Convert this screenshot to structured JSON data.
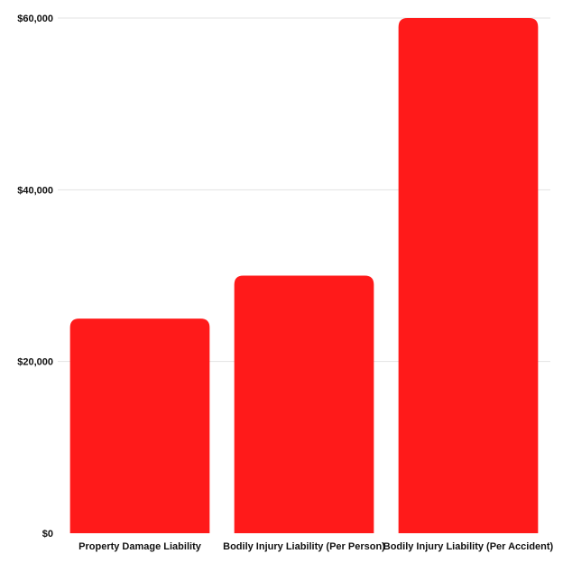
{
  "chart_data": {
    "type": "bar",
    "categories": [
      "Property Damage Liability",
      "Bodily Injury Liability (Per Person)",
      "Bodily Injury Liability (Per Accident)"
    ],
    "values": [
      25000,
      30000,
      60000
    ],
    "ylim": [
      0,
      60000
    ],
    "yticks": [
      0,
      20000,
      40000,
      60000
    ],
    "ytick_labels": [
      "$0",
      "$20,000",
      "$40,000",
      "$60,000"
    ],
    "grid": true,
    "bar_color": "#ff1a1a"
  }
}
